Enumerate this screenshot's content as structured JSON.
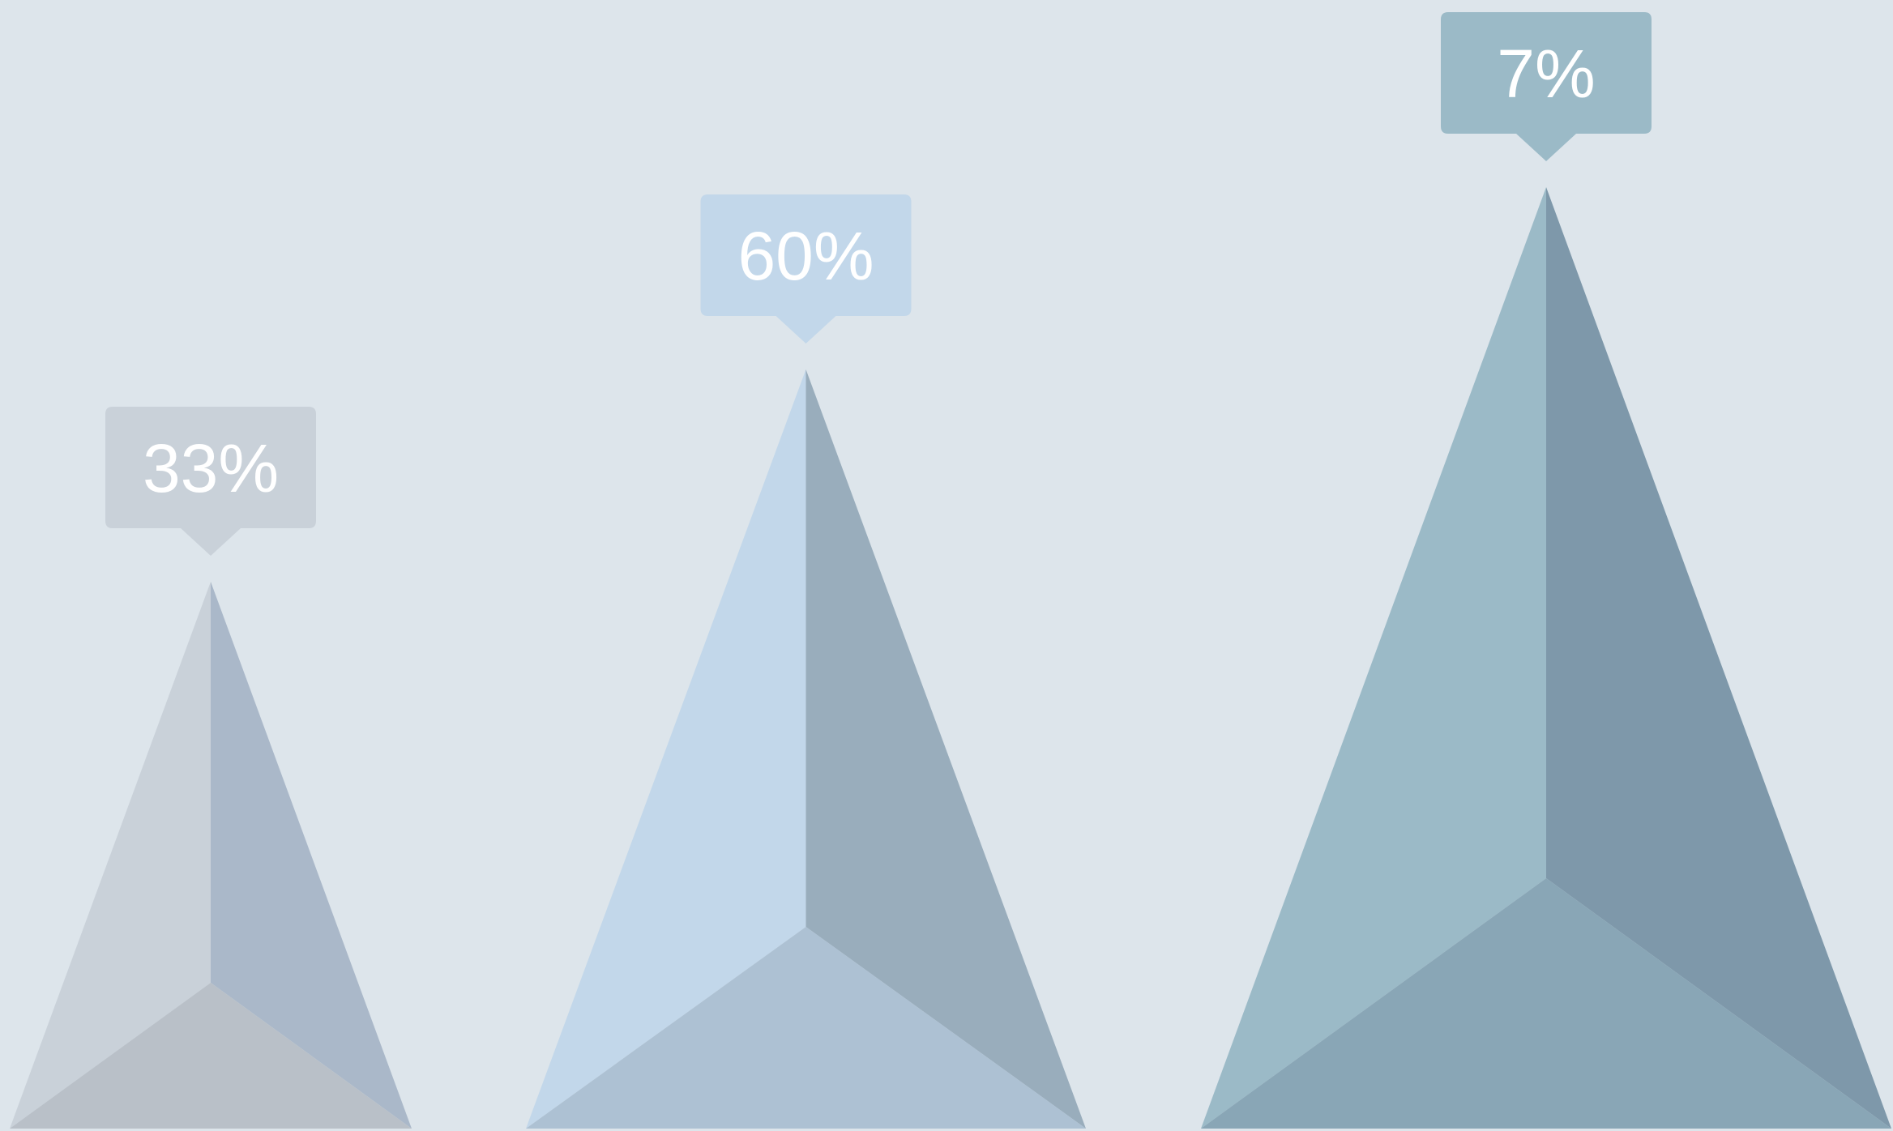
{
  "background_color": "#dde5eb",
  "chart_data": {
    "type": "bar",
    "mark_shape": "pyramid",
    "title": "",
    "xlabel": "",
    "ylabel": "",
    "grid": false,
    "legend": "none",
    "categories": [
      "",
      "",
      ""
    ],
    "values": [
      33,
      60,
      7
    ],
    "data_labels": [
      "33%",
      "60%",
      "7%"
    ],
    "colors": [
      {
        "left": "#c9d1d9",
        "right": "#aab8c9",
        "bottom": "#b9c0c8",
        "tooltip": "#c9d1d9"
      },
      {
        "left": "#c2d7ea",
        "right": "#99adbc",
        "bottom": "#adc1d3",
        "tooltip": "#c2d7ea"
      },
      {
        "left": "#9bbac7",
        "right": "#7e98aa",
        "bottom": "#89a6b6",
        "tooltip": "#9bbac7"
      }
    ]
  }
}
